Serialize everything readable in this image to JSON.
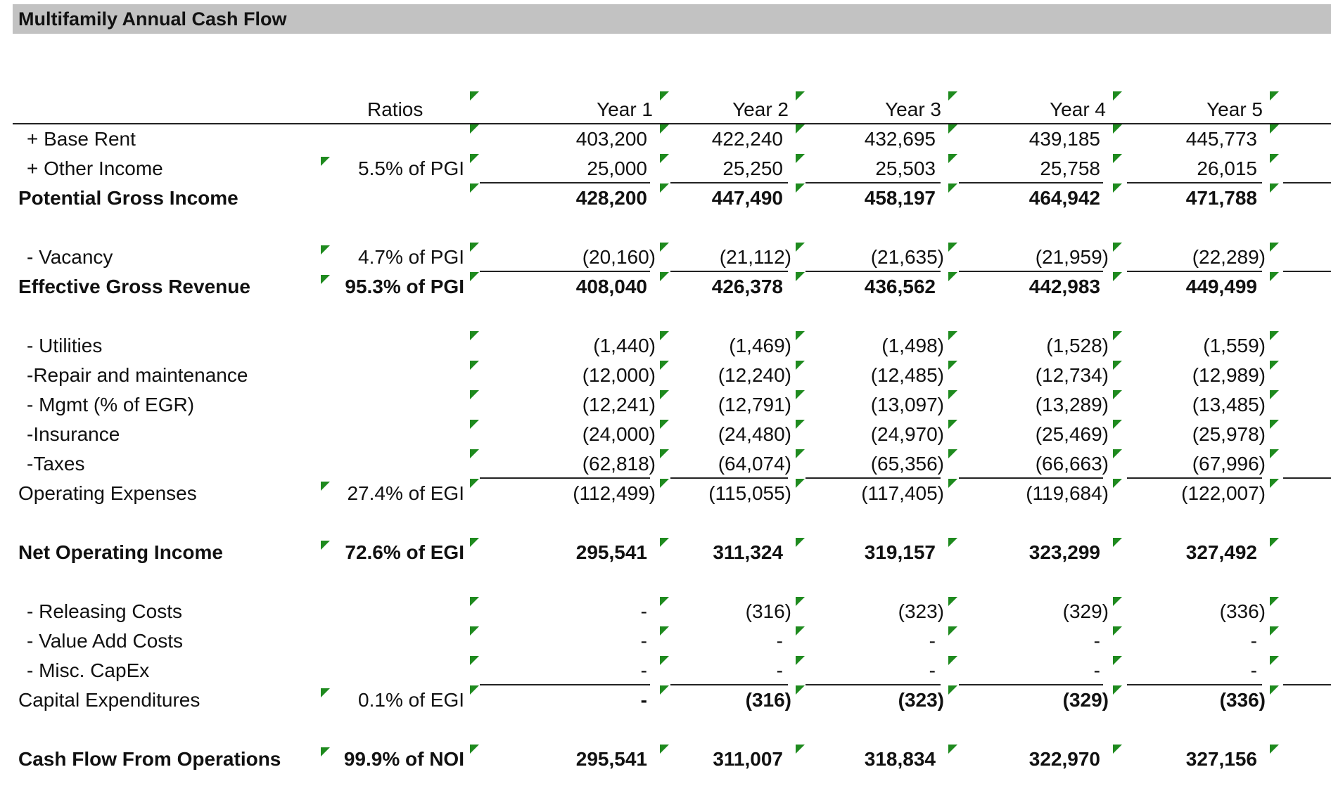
{
  "title": "Multifamily Annual Cash Flow",
  "columns": {
    "ratios": "Ratios",
    "years": [
      "Year 1",
      "Year 2",
      "Year 3",
      "Year 4",
      "Year 5"
    ]
  },
  "rows": [
    {
      "id": "base-rent",
      "label": "+ Base Rent",
      "ratio": "",
      "values": [
        "403,200",
        "422,240",
        "432,695",
        "439,185",
        "445,773"
      ],
      "bold": false,
      "underline": false,
      "indent": true
    },
    {
      "id": "other-income",
      "label": "+ Other Income",
      "ratio": "5.5% of PGI",
      "values": [
        "25,000",
        "25,250",
        "25,503",
        "25,758",
        "26,015"
      ],
      "bold": false,
      "underline": true,
      "indent": true
    },
    {
      "id": "potential-gross-income",
      "label": "Potential Gross Income",
      "ratio": "",
      "values": [
        "428,200",
        "447,490",
        "458,197",
        "464,942",
        "471,788"
      ],
      "bold": true,
      "underline": false,
      "indent": false
    },
    {
      "id": "vacancy",
      "label": "- Vacancy",
      "ratio": "4.7% of PGI",
      "values": [
        "(20,160)",
        "(21,112)",
        "(21,635)",
        "(21,959)",
        "(22,289)"
      ],
      "bold": false,
      "underline": true,
      "indent": true
    },
    {
      "id": "effective-gross-revenue",
      "label": "Effective Gross Revenue",
      "ratio": "95.3% of PGI",
      "values": [
        "408,040",
        "426,378",
        "436,562",
        "442,983",
        "449,499"
      ],
      "bold": true,
      "underline": false,
      "indent": false
    },
    {
      "id": "utilities",
      "label": "- Utilities",
      "ratio": "",
      "values": [
        "(1,440)",
        "(1,469)",
        "(1,498)",
        "(1,528)",
        "(1,559)"
      ],
      "bold": false,
      "underline": false,
      "indent": true
    },
    {
      "id": "repair-maintenance",
      "label": "-Repair and maintenance",
      "ratio": "",
      "values": [
        "(12,000)",
        "(12,240)",
        "(12,485)",
        "(12,734)",
        "(12,989)"
      ],
      "bold": false,
      "underline": false,
      "indent": true
    },
    {
      "id": "mgmt",
      "label": "- Mgmt (% of EGR)",
      "ratio": "",
      "values": [
        "(12,241)",
        "(12,791)",
        "(13,097)",
        "(13,289)",
        "(13,485)"
      ],
      "bold": false,
      "underline": false,
      "indent": true
    },
    {
      "id": "insurance",
      "label": "-Insurance",
      "ratio": "",
      "values": [
        "(24,000)",
        "(24,480)",
        "(24,970)",
        "(25,469)",
        "(25,978)"
      ],
      "bold": false,
      "underline": false,
      "indent": true
    },
    {
      "id": "taxes",
      "label": "-Taxes",
      "ratio": "",
      "values": [
        "(62,818)",
        "(64,074)",
        "(65,356)",
        "(66,663)",
        "(67,996)"
      ],
      "bold": false,
      "underline": true,
      "indent": true
    },
    {
      "id": "operating-expenses",
      "label": "Operating Expenses",
      "ratio": "27.4% of EGI",
      "values": [
        "(112,499)",
        "(115,055)",
        "(117,405)",
        "(119,684)",
        "(122,007)"
      ],
      "bold": false,
      "underline": false,
      "indent": false
    },
    {
      "id": "net-operating-income",
      "label": "Net Operating Income",
      "ratio": "72.6% of EGI",
      "values": [
        "295,541",
        "311,324",
        "319,157",
        "323,299",
        "327,492"
      ],
      "bold": true,
      "underline": false,
      "indent": false
    },
    {
      "id": "releasing-costs",
      "label": "- Releasing Costs",
      "ratio": "",
      "values": [
        "-",
        "(316)",
        "(323)",
        "(329)",
        "(336)"
      ],
      "bold": false,
      "underline": false,
      "indent": true
    },
    {
      "id": "value-add-costs",
      "label": "- Value Add Costs",
      "ratio": "",
      "values": [
        "-",
        "-",
        "-",
        "-",
        "-"
      ],
      "bold": false,
      "underline": false,
      "indent": true
    },
    {
      "id": "misc-capex",
      "label": "- Misc. CapEx",
      "ratio": "",
      "values": [
        "-",
        "-",
        "-",
        "-",
        "-"
      ],
      "bold": false,
      "underline": true,
      "indent": true
    },
    {
      "id": "capital-expenditures",
      "label": "Capital Expenditures",
      "ratio": "0.1% of EGI",
      "values": [
        "-",
        "(316)",
        "(323)",
        "(329)",
        "(336)"
      ],
      "bold": false,
      "underline": false,
      "indent": false,
      "values_bold": true
    },
    {
      "id": "cash-flow-operations",
      "label": "Cash Flow From Operations",
      "ratio": "99.9% of NOI",
      "values": [
        "295,541",
        "311,007",
        "318,834",
        "322,970",
        "327,156"
      ],
      "bold": true,
      "underline": false,
      "indent": false
    }
  ]
}
